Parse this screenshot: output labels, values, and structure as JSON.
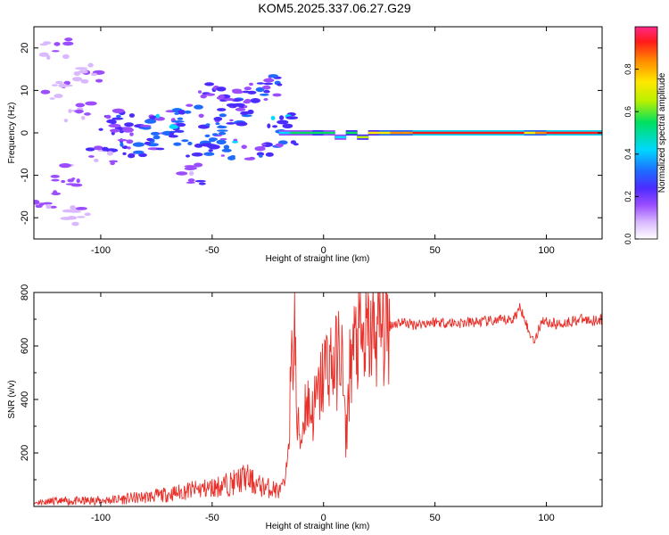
{
  "title": "KOM5.2025.337.06.27.G29",
  "colors": {
    "snr_line": "#e8302a",
    "colormap": [
      "#ffffff",
      "#d9b8ff",
      "#9b4dff",
      "#4b2cff",
      "#1f6bff",
      "#00d8ff",
      "#00e060",
      "#b8f000",
      "#ffe800",
      "#ff8a00",
      "#ff1a1a",
      "#ff2a88"
    ]
  },
  "chart_data": [
    {
      "type": "heatmap",
      "xlabel": "Height of straight line (km)",
      "ylabel": "Frequency (Hz)",
      "xlim": [
        -130,
        125
      ],
      "ylim": [
        -25,
        25
      ],
      "xticks": [
        "-100",
        "-50",
        "0",
        "50",
        "100"
      ],
      "yticks": [
        "-20",
        "-10",
        "0",
        "10",
        "20"
      ],
      "xtick_values": [
        -100,
        -50,
        0,
        50,
        100
      ],
      "ytick_values": [
        -20,
        -10,
        0,
        10,
        20
      ],
      "colorbar": {
        "label": "Normalized spectral amplitude",
        "ticks": [
          "0.0",
          "0.2",
          "0.4",
          "0.6",
          "0.8"
        ],
        "tick_values": [
          0.0,
          0.2,
          0.4,
          0.6,
          0.8
        ],
        "range": [
          0,
          1
        ]
      },
      "ridge": [
        [
          -20,
          0,
          0.45
        ],
        [
          -15,
          0,
          0.5
        ],
        [
          -10,
          0,
          0.5
        ],
        [
          -5,
          0,
          0.55
        ],
        [
          0,
          0,
          0.5
        ],
        [
          5,
          -1,
          0.45
        ],
        [
          10,
          0,
          0.55
        ],
        [
          15,
          -1,
          0.6
        ],
        [
          20,
          0,
          0.7
        ],
        [
          25,
          0,
          0.75
        ],
        [
          30,
          0,
          0.85
        ],
        [
          40,
          0,
          0.95
        ],
        [
          50,
          0,
          0.95
        ],
        [
          60,
          0,
          0.95
        ],
        [
          70,
          0,
          0.95
        ],
        [
          80,
          0,
          0.95
        ],
        [
          90,
          0,
          0.75
        ],
        [
          95,
          0,
          0.85
        ],
        [
          100,
          0,
          0.95
        ],
        [
          110,
          0,
          0.95
        ],
        [
          120,
          0,
          0.95
        ]
      ],
      "clusters": [
        [
          -80,
          2,
          0.3
        ],
        [
          -75,
          -2,
          0.3
        ],
        [
          -70,
          3,
          0.35
        ],
        [
          -65,
          -1,
          0.3
        ],
        [
          -60,
          4,
          0.3
        ],
        [
          -55,
          -3,
          0.3
        ],
        [
          -50,
          1,
          0.3
        ],
        [
          -45,
          -4,
          0.3
        ],
        [
          -40,
          3,
          0.3
        ],
        [
          -35,
          6,
          0.25
        ],
        [
          -30,
          9,
          0.25
        ],
        [
          -25,
          11,
          0.25
        ],
        [
          -30,
          -5,
          0.3
        ],
        [
          -90,
          0,
          0.25
        ],
        [
          -95,
          3,
          0.25
        ],
        [
          -85,
          -3,
          0.25
        ],
        [
          -100,
          -5,
          0.2
        ],
        [
          -110,
          5,
          0.15
        ],
        [
          -115,
          -10,
          0.15
        ],
        [
          -120,
          10,
          0.12
        ],
        [
          -125,
          -15,
          0.12
        ],
        [
          -120,
          20,
          0.12
        ],
        [
          -105,
          14,
          0.12
        ],
        [
          -110,
          -20,
          0.12
        ],
        [
          -60,
          -10,
          0.2
        ],
        [
          -50,
          10,
          0.2
        ],
        [
          -40,
          8,
          0.25
        ],
        [
          -20,
          2,
          0.35
        ],
        [
          -15,
          -1,
          0.35
        ]
      ]
    },
    {
      "type": "line",
      "xlabel": "Height of straight line (km)",
      "ylabel": "SNR (v/v)",
      "xlim": [
        -130,
        125
      ],
      "ylim": [
        0,
        800
      ],
      "xticks": [
        "-100",
        "-50",
        "0",
        "50",
        "100"
      ],
      "yticks": [
        "200",
        "400",
        "600",
        "800"
      ],
      "xtick_values": [
        -100,
        -50,
        0,
        50,
        100
      ],
      "ytick_values": [
        200,
        400,
        600,
        800
      ],
      "series": [
        {
          "x": [
            -130,
            -120,
            -110,
            -100,
            -90,
            -80,
            -70,
            -60,
            -50,
            -40,
            -35,
            -30,
            -25,
            -20,
            -17,
            -15,
            -13,
            -12,
            -10,
            -8,
            -5,
            -2,
            0,
            2,
            5,
            8,
            10,
            12,
            15,
            18,
            20,
            25,
            30,
            35,
            40,
            50,
            60,
            70,
            80,
            85,
            88,
            90,
            92,
            95,
            98,
            100,
            105,
            110,
            115,
            120,
            125
          ],
          "values": [
            15,
            18,
            20,
            22,
            28,
            35,
            45,
            60,
            70,
            90,
            110,
            80,
            70,
            60,
            90,
            400,
            700,
            300,
            250,
            400,
            350,
            420,
            500,
            550,
            520,
            600,
            230,
            550,
            620,
            600,
            630,
            660,
            680,
            690,
            680,
            690,
            685,
            690,
            695,
            700,
            740,
            720,
            650,
            620,
            700,
            690,
            680,
            690,
            700,
            695,
            700
          ]
        }
      ]
    }
  ]
}
